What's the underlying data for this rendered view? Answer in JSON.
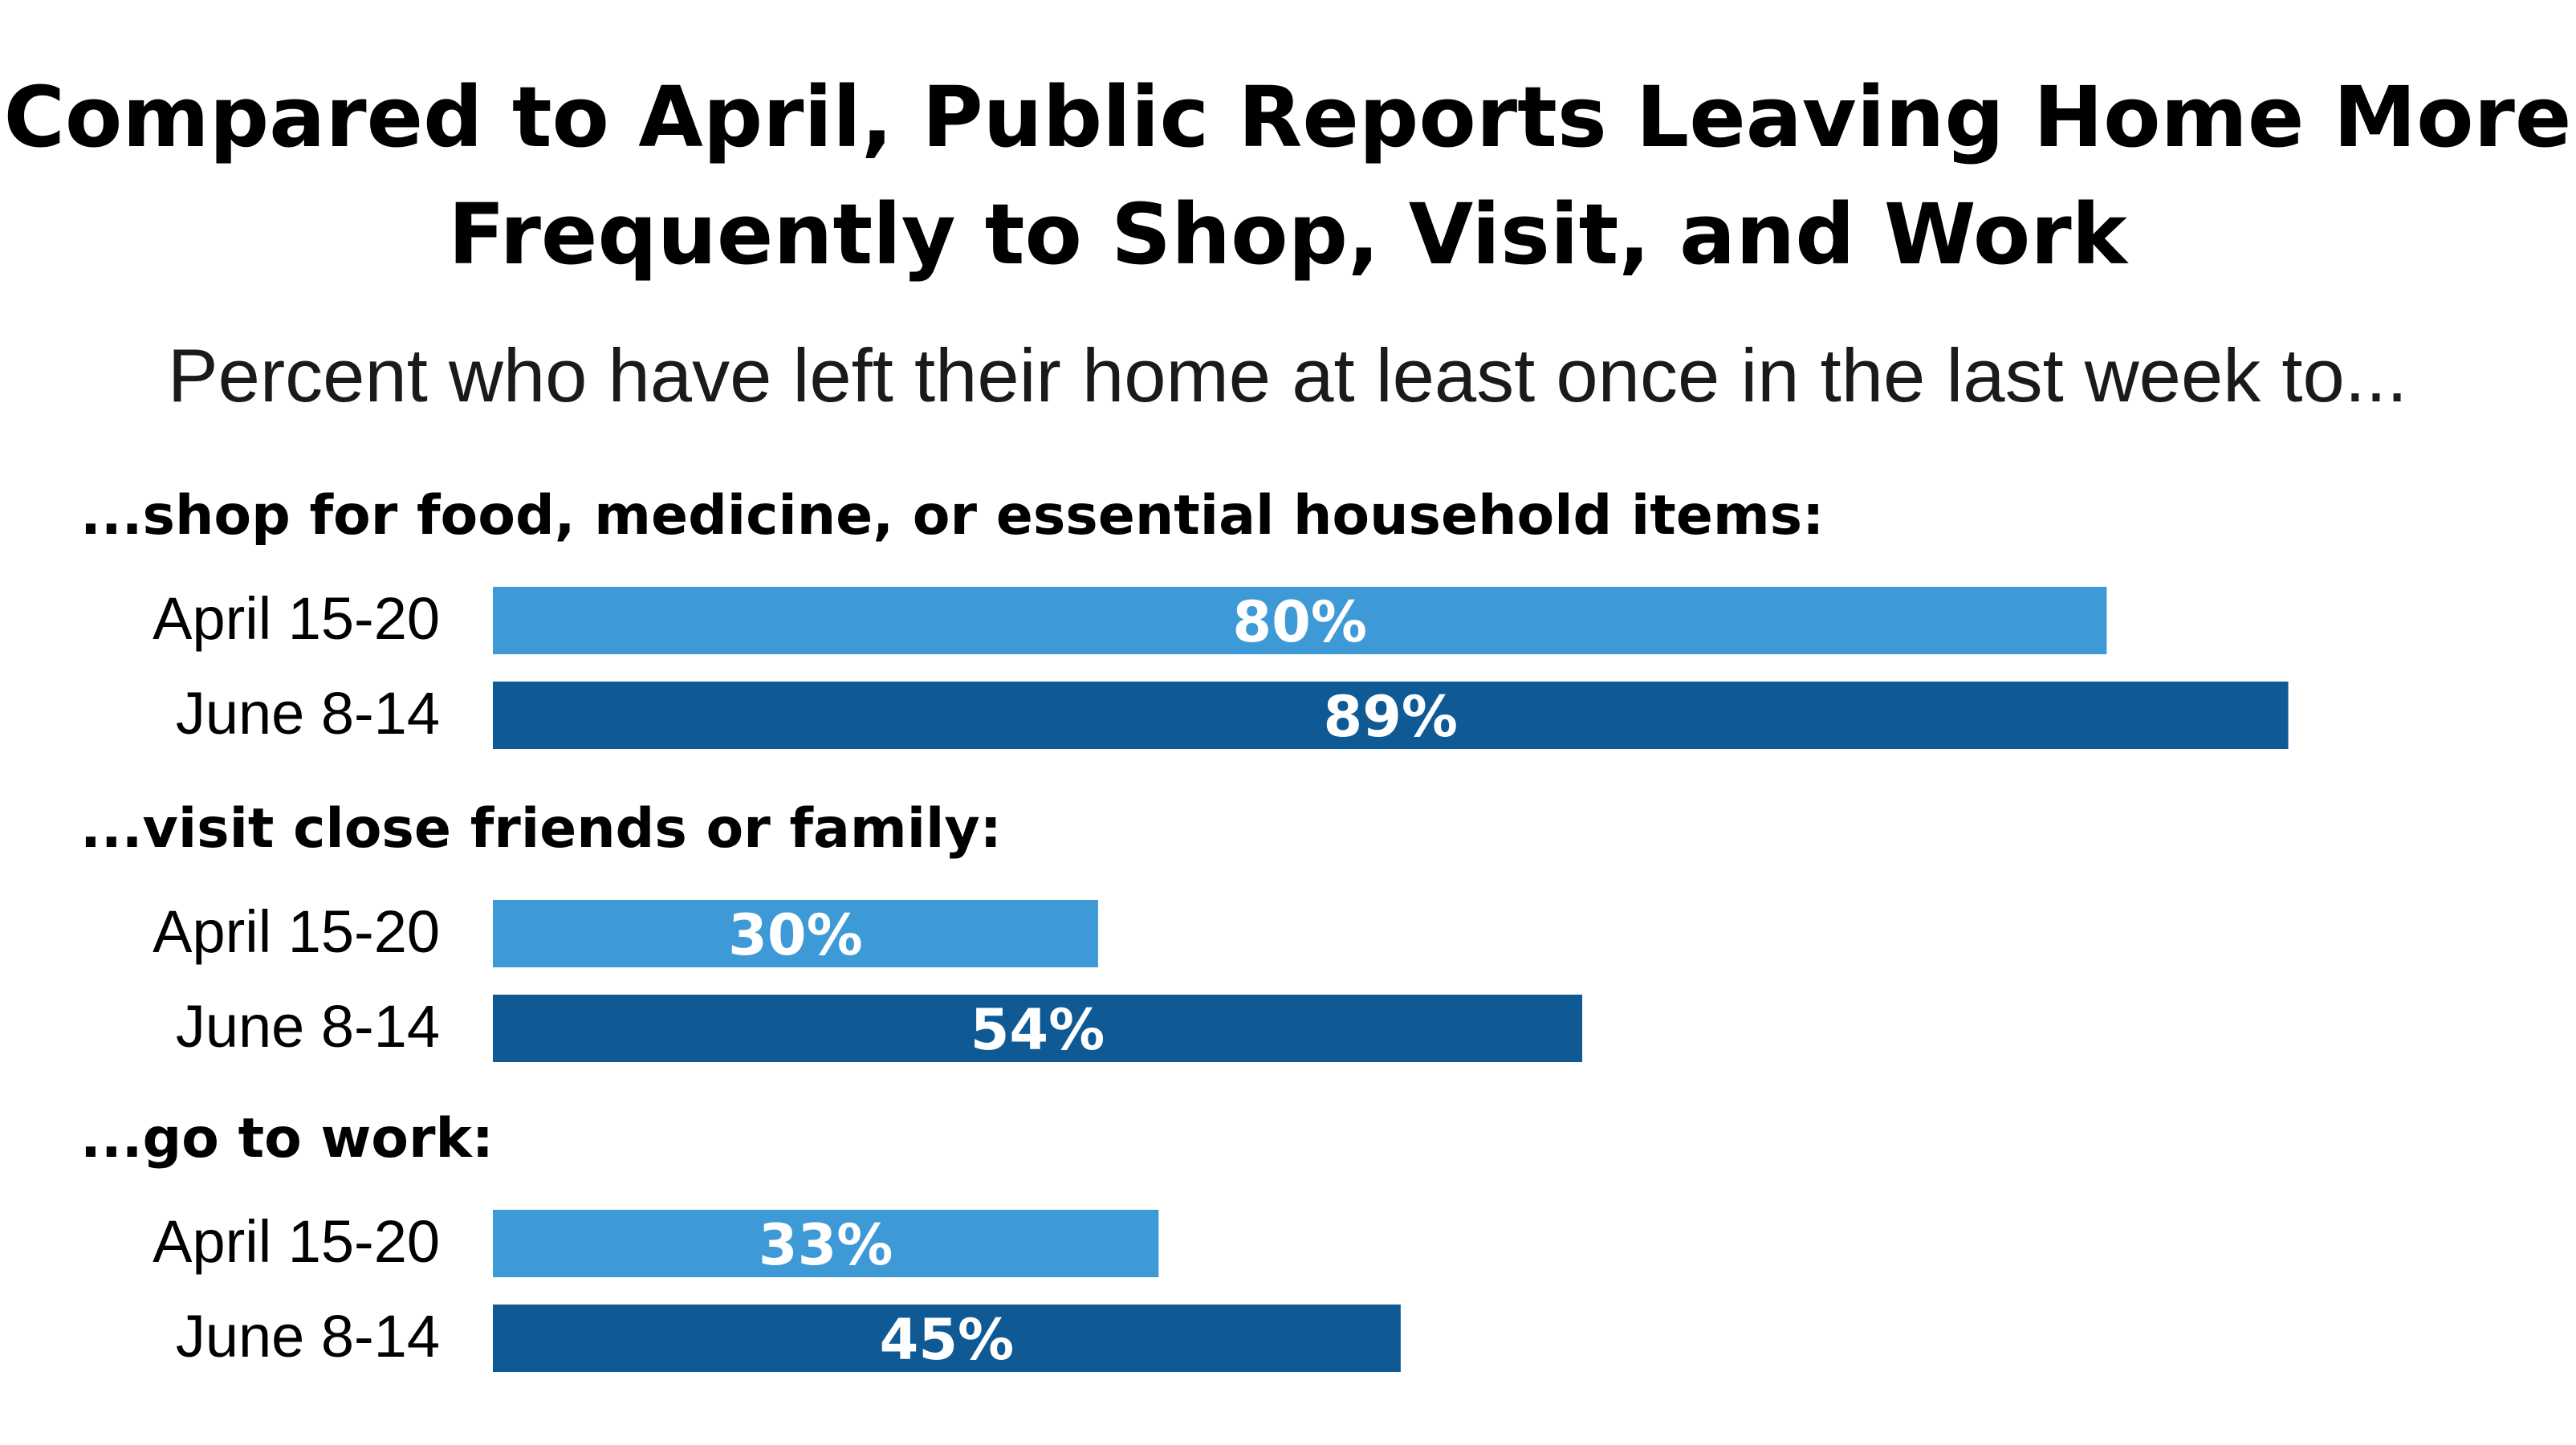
{
  "chart_data": {
    "type": "bar",
    "orientation": "horizontal",
    "title_lines": [
      "Compared to April, Public Reports Leaving Home More",
      "Frequently to Shop, Visit, and Work"
    ],
    "subtitle": "Percent who have left their home at least once in the last week to...",
    "xlim": [
      0,
      100
    ],
    "grid": false,
    "series": [
      {
        "name": "April 15-20",
        "color": "#3e9ad6"
      },
      {
        "name": "June 8-14",
        "color": "#0f5a94"
      }
    ],
    "groups": [
      {
        "label": "...shop for food, medicine, or essential household items:",
        "rows": [
          {
            "label": "April 15-20",
            "value": 80,
            "value_label": "80%"
          },
          {
            "label": "June 8-14",
            "value": 89,
            "value_label": "89%"
          }
        ]
      },
      {
        "label": "...visit close friends or family:",
        "rows": [
          {
            "label": "April 15-20",
            "value": 30,
            "value_label": "30%"
          },
          {
            "label": "June 8-14",
            "value": 54,
            "value_label": "54%"
          }
        ]
      },
      {
        "label": "...go to work:",
        "rows": [
          {
            "label": "April 15-20",
            "value": 33,
            "value_label": "33%"
          },
          {
            "label": "June 8-14",
            "value": 45,
            "value_label": "45%"
          }
        ]
      }
    ]
  }
}
